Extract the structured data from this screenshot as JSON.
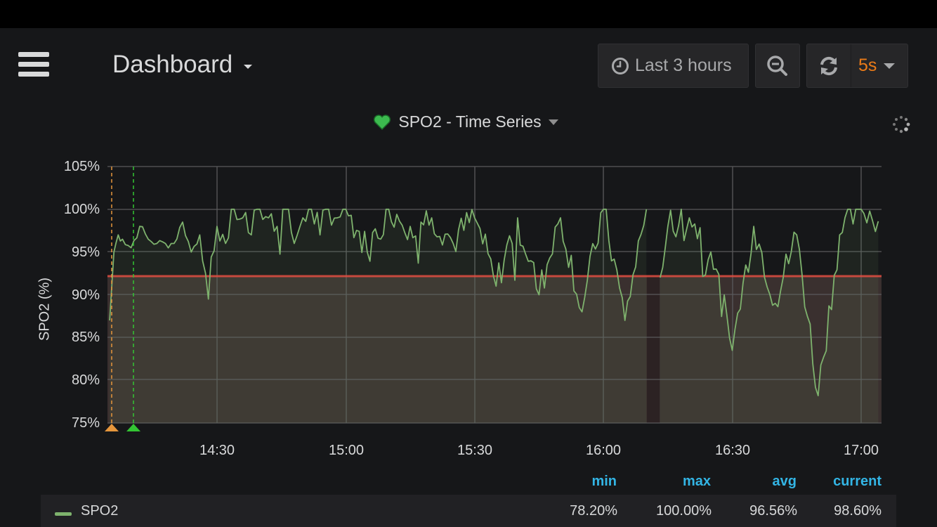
{
  "header": {
    "menu_icon": "hamburger-menu-icon",
    "dashboard_title": "Dashboard",
    "time_range": {
      "icon": "clock-icon",
      "label": "Last 3 hours"
    },
    "zoom_out": {
      "icon": "zoom-out-icon"
    },
    "refresh": {
      "icon": "refresh-icon",
      "interval": "5s"
    }
  },
  "panel": {
    "title": "SPO2 - Time Series",
    "title_icon": "heart-icon",
    "loading_icon": "spinner-icon"
  },
  "colors": {
    "series": "#7eb26d",
    "threshold": "#e24d42",
    "annotation_orange": "#e5963c",
    "annotation_green": "#33c533",
    "legend_header": "#33b5e5",
    "refresh_interval": "#eb7b18"
  },
  "legend": {
    "headers": {
      "min": "min",
      "max": "max",
      "avg": "avg",
      "current": "current"
    },
    "series": [
      {
        "name": "SPO2",
        "min": "78.20%",
        "max": "100.00%",
        "avg": "96.56%",
        "current": "98.60%"
      }
    ]
  },
  "chart_data": {
    "type": "line",
    "title": "SPO2 - Time Series",
    "xlabel": "",
    "ylabel": "SPO2 (%)",
    "ylim": [
      75,
      105
    ],
    "yticks": [
      "105%",
      "100%",
      "95%",
      "90%",
      "85%",
      "80%",
      "75%"
    ],
    "xticks": [
      "14:30",
      "15:00",
      "15:30",
      "16:00",
      "16:30",
      "17:00"
    ],
    "grid": true,
    "legend_position": "bottom-table",
    "threshold": {
      "value": 92.3,
      "op": "lt",
      "fill": true
    },
    "annotations": [
      {
        "time": "14:05",
        "color": "orange"
      },
      {
        "time": "14:10",
        "color": "green"
      }
    ],
    "series": [
      {
        "name": "SPO2",
        "x": [
          "14:05",
          "14:06",
          "14:07",
          "14:08",
          "14:10",
          "14:12",
          "14:14",
          "14:16",
          "14:18",
          "14:20",
          "14:22",
          "14:24",
          "14:26",
          "14:28",
          "14:30",
          "14:32",
          "14:34",
          "14:36",
          "14:38",
          "14:40",
          "14:42",
          "14:44",
          "14:46",
          "14:48",
          "14:50",
          "14:52",
          "14:54",
          "14:56",
          "14:58",
          "15:00",
          "15:05",
          "15:10",
          "15:15",
          "15:20",
          "15:25",
          "15:30",
          "15:35",
          "15:40",
          "15:45",
          "15:50",
          "15:55",
          "16:00",
          "16:05",
          "16:10",
          "16:12",
          "16:15",
          "16:20",
          "16:25",
          "16:30",
          "16:35",
          "16:40",
          "16:45",
          "16:50",
          "16:55",
          "17:00",
          "17:04"
        ],
        "values": [
          87,
          95,
          97,
          96.5,
          95.5,
          98,
          96.5,
          96,
          96,
          96,
          98.5,
          95,
          97,
          89.5,
          98,
          96,
          100,
          99,
          97,
          100,
          99,
          98,
          100,
          96,
          99,
          100,
          97,
          100,
          99,
          100,
          95,
          100,
          98,
          99,
          96,
          99,
          91,
          99,
          90,
          99,
          88,
          100,
          87,
          100,
          86,
          98,
          99,
          95,
          83.5,
          98,
          89,
          97,
          78.2,
          97,
          100,
          98.6
        ]
      }
    ],
    "stats": {
      "min": 78.2,
      "max": 100.0,
      "avg": 96.56,
      "current": 98.6
    }
  }
}
